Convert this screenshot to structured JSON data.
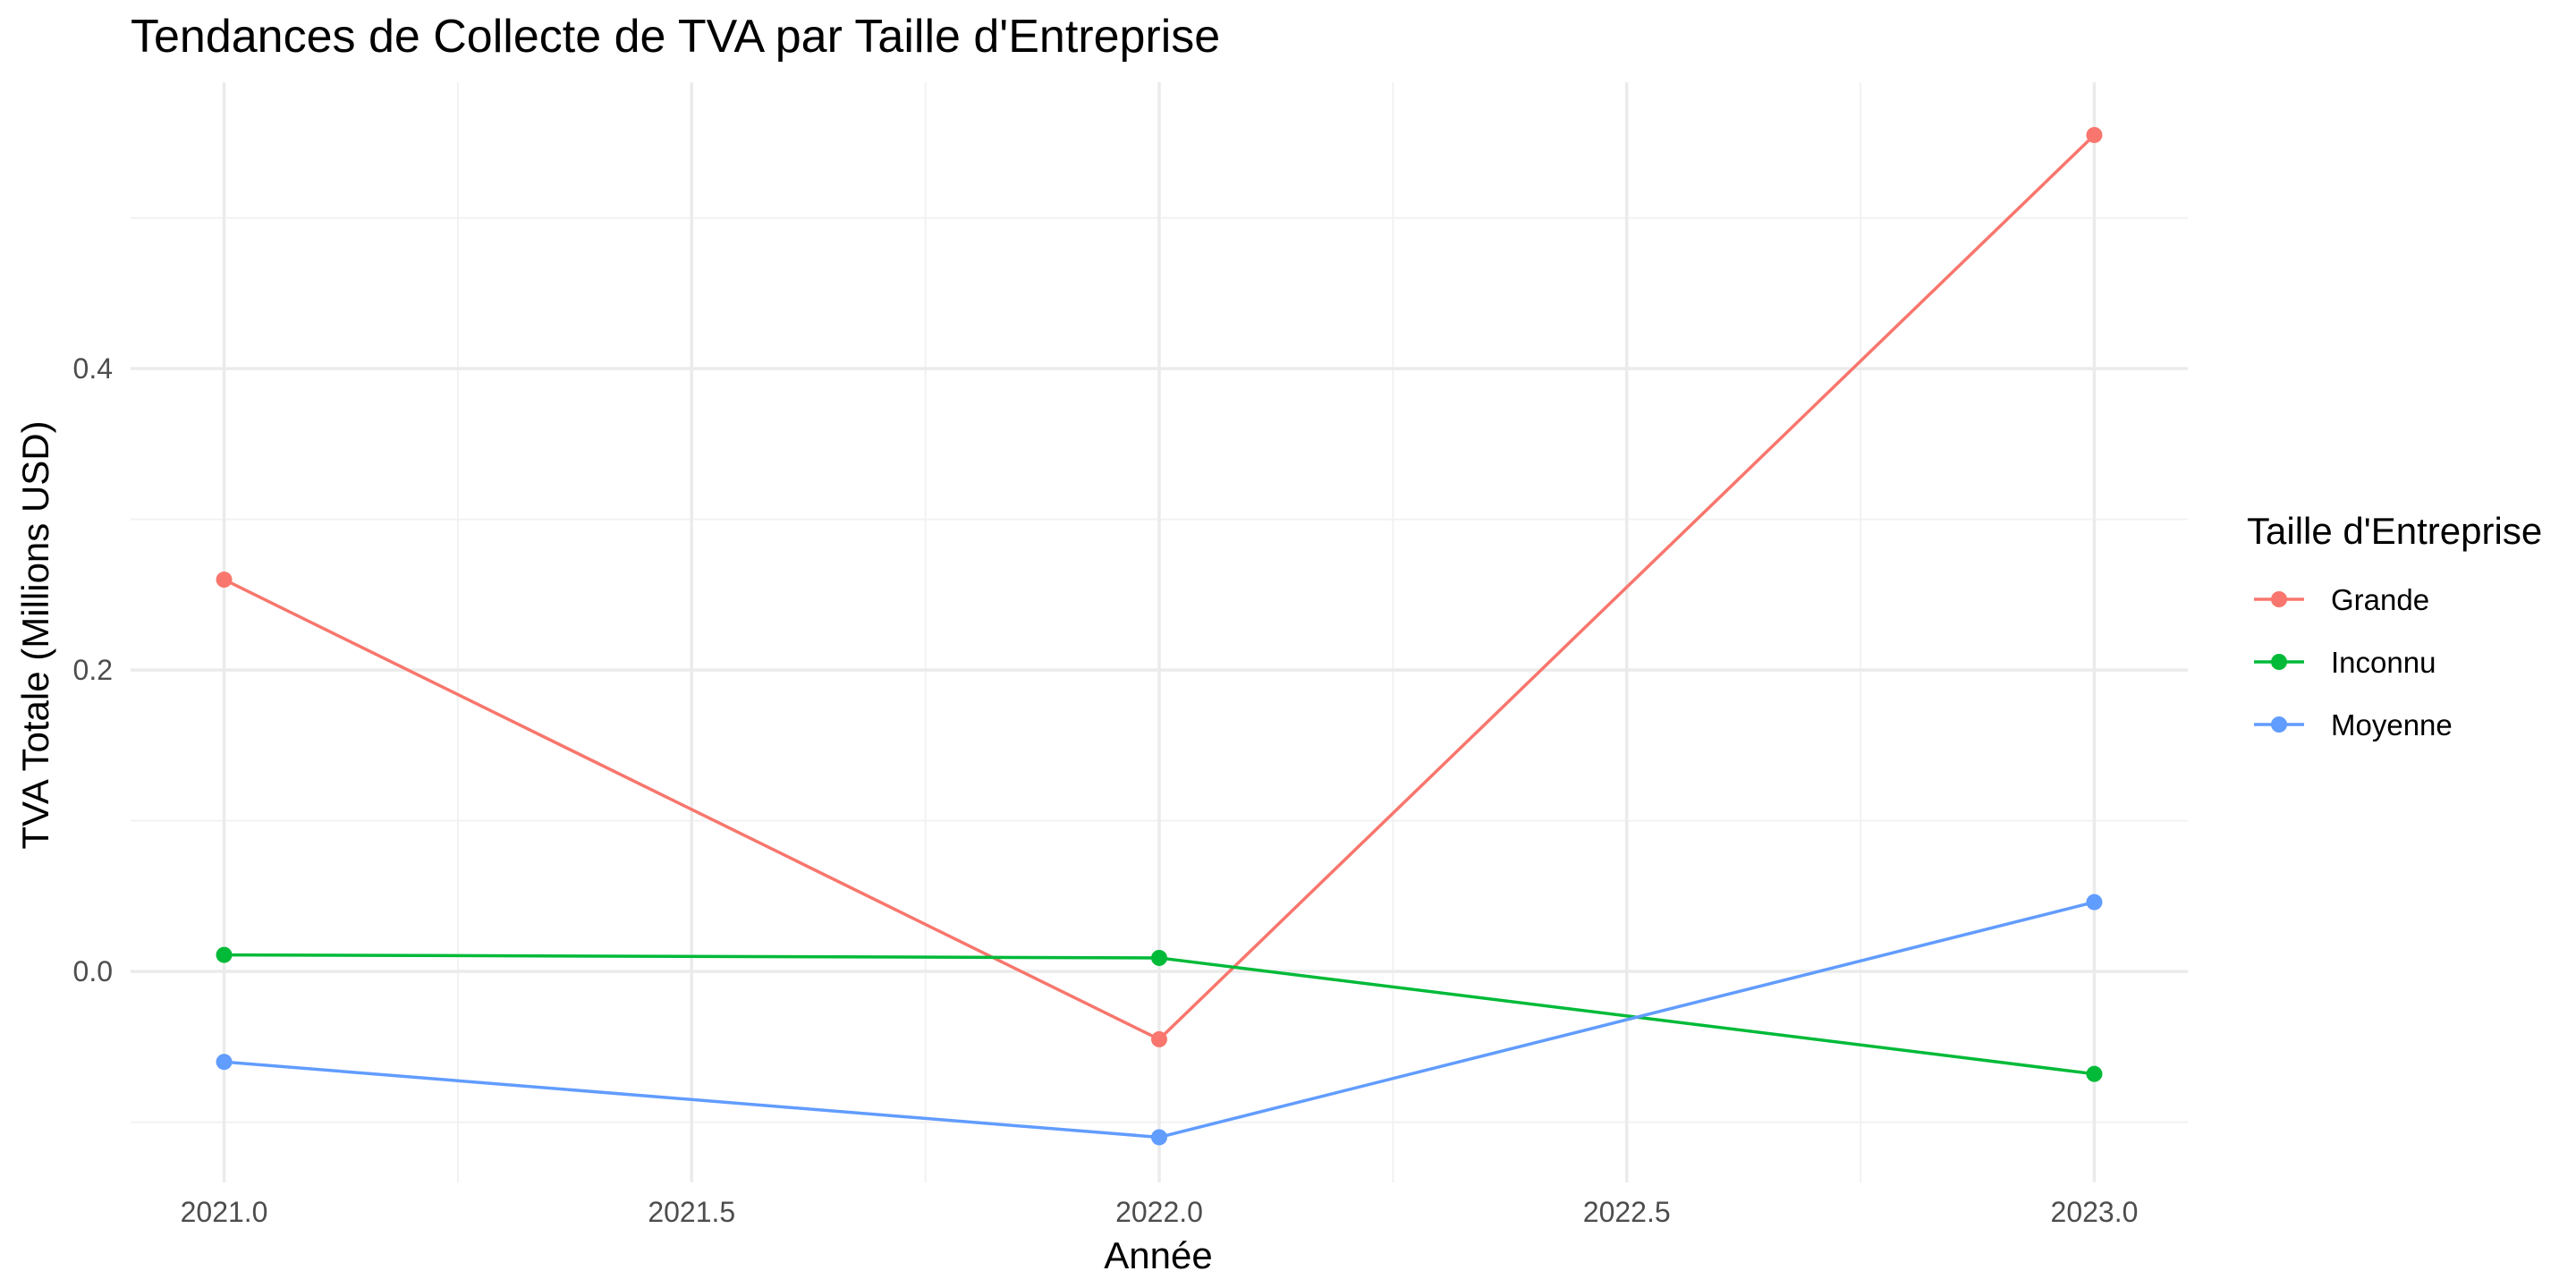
{
  "chart_data": {
    "type": "line",
    "title": "Tendances de Collecte de TVA par Taille d'Entreprise",
    "xlabel": "Année",
    "ylabel": "TVA Totale (Millions USD)",
    "x": [
      2021.0,
      2022.0,
      2023.0
    ],
    "xlim": [
      2020.9,
      2023.1
    ],
    "ylim": [
      -0.14,
      0.59
    ],
    "x_ticks": [
      2021.0,
      2021.5,
      2022.0,
      2022.5,
      2023.0
    ],
    "x_tick_labels": [
      "2021.0",
      "2021.5",
      "2022.0",
      "2022.5",
      "2023.0"
    ],
    "x_minor_ticks": [
      2021.25,
      2021.75,
      2022.25,
      2022.75
    ],
    "y_ticks": [
      0.0,
      0.2,
      0.4
    ],
    "y_tick_labels": [
      "0.0",
      "0.2",
      "0.4"
    ],
    "y_minor_ticks": [
      -0.1,
      0.1,
      0.3,
      0.5
    ],
    "grid": true,
    "legend_title": "Taille d'Entreprise",
    "legend_position": "right",
    "series": [
      {
        "name": "Grande",
        "color": "#F8766D",
        "values": [
          0.26,
          -0.045,
          0.555
        ]
      },
      {
        "name": "Inconnu",
        "color": "#00BA38",
        "values": [
          0.011,
          0.009,
          -0.068
        ]
      },
      {
        "name": "Moyenne",
        "color": "#619CFF",
        "values": [
          -0.06,
          -0.11,
          0.046
        ]
      }
    ]
  }
}
